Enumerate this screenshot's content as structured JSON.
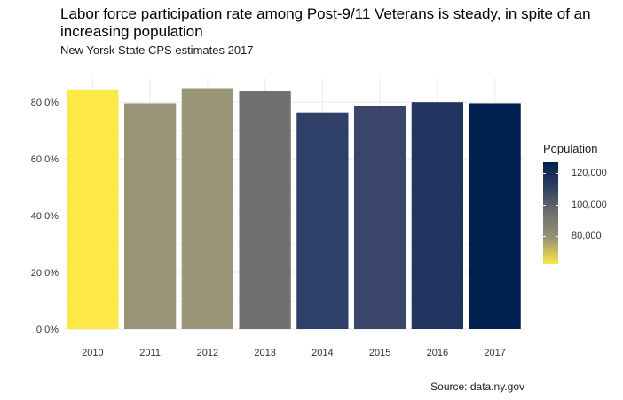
{
  "title": "Labor force participation rate among Post-9/11 Veterans is steady, in spite of an increasing population",
  "subtitle": "New Yorsk State CPS estimates 2017",
  "caption": "Source: data.ny.gov",
  "legend": {
    "title": "Population",
    "ticks": [
      {
        "label": "120,000",
        "value": 120000
      },
      {
        "label": "100,000",
        "value": 100000
      },
      {
        "label": "80,000",
        "value": 80000
      }
    ],
    "range": [
      62000,
      127000
    ],
    "colors": [
      "#FDE945",
      "#9A9377",
      "#707070",
      "#303F62",
      "#002150"
    ]
  },
  "chart_data": {
    "type": "bar",
    "categories": [
      "2010",
      "2011",
      "2012",
      "2013",
      "2014",
      "2015",
      "2016",
      "2017"
    ],
    "values": [
      84.5,
      79.6,
      84.9,
      83.8,
      76.4,
      78.5,
      80.0,
      79.6
    ],
    "population": [
      62000,
      84000,
      86000,
      98000,
      113000,
      110000,
      119000,
      127000
    ],
    "fill_colors": [
      "#FDE945",
      "#9A9377",
      "#9B9577",
      "#707070",
      "#2F4068",
      "#39466A",
      "#213460",
      "#002150"
    ],
    "y_ticks": [
      "0.0%",
      "20.0%",
      "40.0%",
      "60.0%",
      "80.0%"
    ],
    "y_tick_values": [
      0,
      20,
      40,
      60,
      80
    ],
    "ylim": [
      0,
      88.5
    ],
    "xlabel": "",
    "ylabel": "",
    "grid": true,
    "legend_position": "right"
  }
}
